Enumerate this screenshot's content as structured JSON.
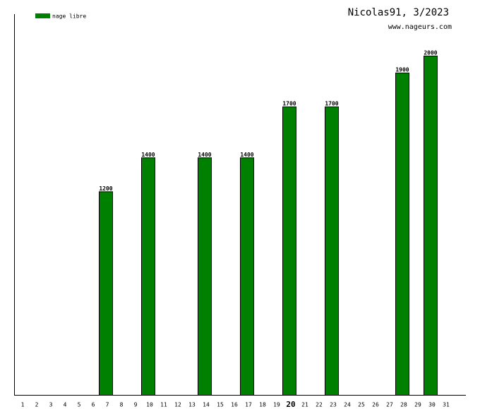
{
  "chart_data": {
    "type": "bar",
    "title": "Nicolas91, 3/2023",
    "subtitle": "www.nageurs.com",
    "categories": [
      "1",
      "2",
      "3",
      "4",
      "5",
      "6",
      "7",
      "8",
      "9",
      "10",
      "11",
      "12",
      "13",
      "14",
      "15",
      "16",
      "17",
      "18",
      "19",
      "20",
      "21",
      "22",
      "23",
      "24",
      "25",
      "26",
      "27",
      "28",
      "29",
      "30",
      "31"
    ],
    "series": [
      {
        "name": "nage libre",
        "color": "#008000",
        "values": [
          null,
          null,
          null,
          null,
          null,
          null,
          1200,
          null,
          null,
          1400,
          null,
          null,
          null,
          1400,
          null,
          null,
          1400,
          null,
          null,
          1700,
          null,
          null,
          1700,
          null,
          null,
          null,
          null,
          1900,
          null,
          2000,
          null
        ]
      }
    ],
    "ylim": [
      0,
      2245
    ],
    "highlight_index": 19
  }
}
